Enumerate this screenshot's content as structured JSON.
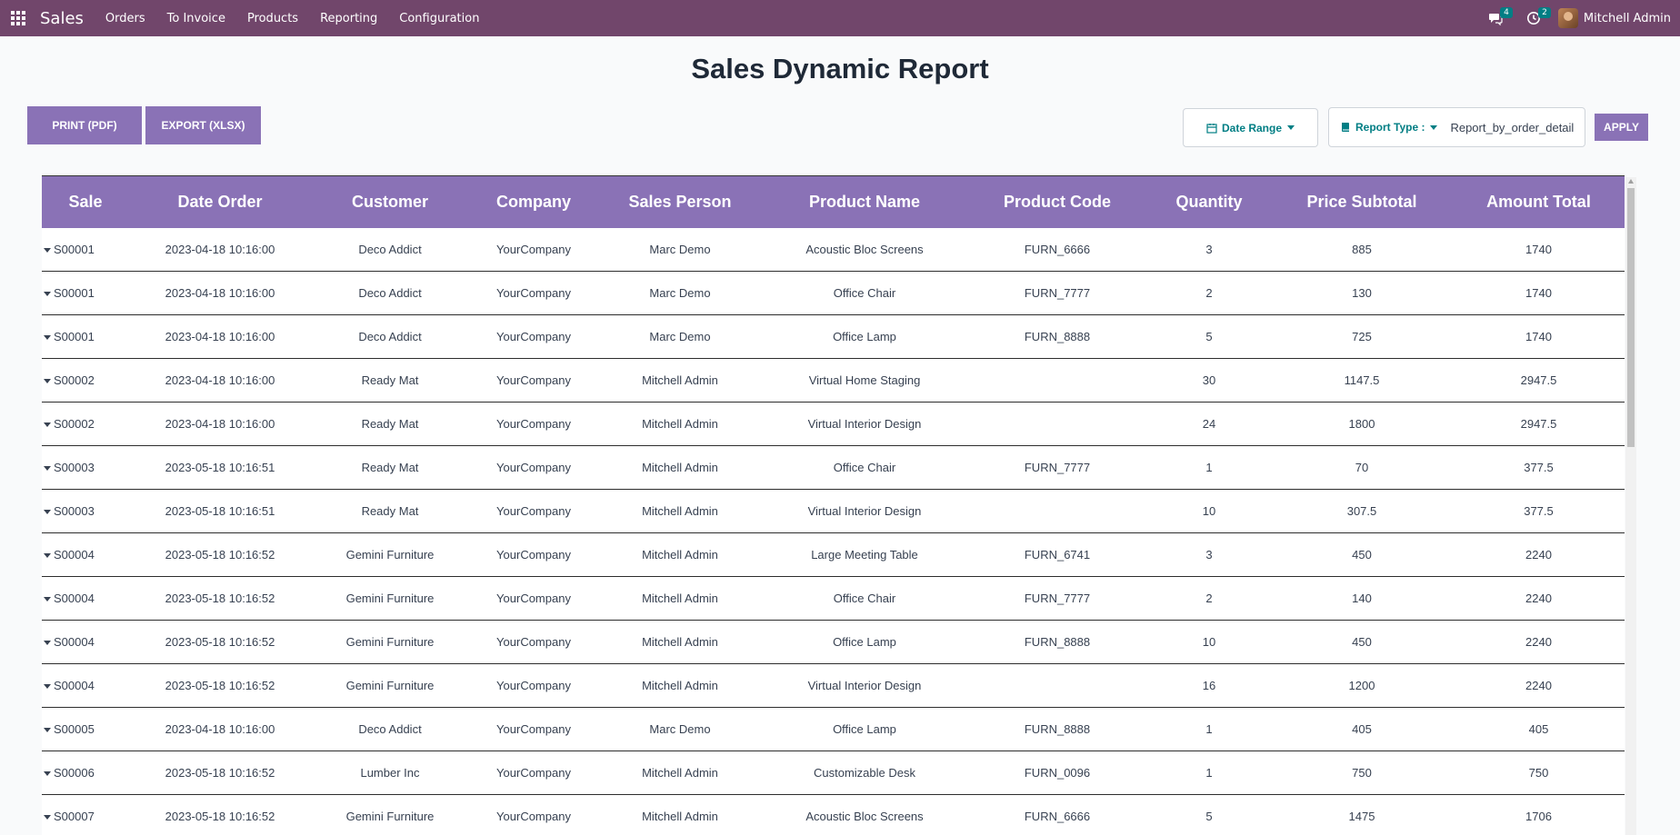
{
  "navbar": {
    "brand": "Sales",
    "items": [
      "Orders",
      "To Invoice",
      "Products",
      "Reporting",
      "Configuration"
    ],
    "messages_count": "4",
    "activities_count": "2",
    "user_name": "Mitchell Admin"
  },
  "title": "Sales Dynamic Report",
  "actions": {
    "print_label": "PRINT (PDF)",
    "export_label": "EXPORT (XLSX)",
    "apply_label": "APPLY"
  },
  "filters": {
    "date_range_label": "Date Range",
    "report_type_label": "Report Type :",
    "report_type_value": "Report_by_order_detail"
  },
  "colors": {
    "navbar": "#71466b",
    "accent": "#8a72b6",
    "teal": "#017e84"
  },
  "table": {
    "headers": [
      "Sale",
      "Date Order",
      "Customer",
      "Company",
      "Sales Person",
      "Product Name",
      "Product Code",
      "Quantity",
      "Price Subtotal",
      "Amount Total"
    ],
    "rows": [
      [
        "S00001",
        "2023-04-18 10:16:00",
        "Deco Addict",
        "YourCompany",
        "Marc Demo",
        "Acoustic Bloc Screens",
        "FURN_6666",
        "3",
        "885",
        "1740"
      ],
      [
        "S00001",
        "2023-04-18 10:16:00",
        "Deco Addict",
        "YourCompany",
        "Marc Demo",
        "Office Chair",
        "FURN_7777",
        "2",
        "130",
        "1740"
      ],
      [
        "S00001",
        "2023-04-18 10:16:00",
        "Deco Addict",
        "YourCompany",
        "Marc Demo",
        "Office Lamp",
        "FURN_8888",
        "5",
        "725",
        "1740"
      ],
      [
        "S00002",
        "2023-04-18 10:16:00",
        "Ready Mat",
        "YourCompany",
        "Mitchell Admin",
        "Virtual Home Staging",
        "",
        "30",
        "1147.5",
        "2947.5"
      ],
      [
        "S00002",
        "2023-04-18 10:16:00",
        "Ready Mat",
        "YourCompany",
        "Mitchell Admin",
        "Virtual Interior Design",
        "",
        "24",
        "1800",
        "2947.5"
      ],
      [
        "S00003",
        "2023-05-18 10:16:51",
        "Ready Mat",
        "YourCompany",
        "Mitchell Admin",
        "Office Chair",
        "FURN_7777",
        "1",
        "70",
        "377.5"
      ],
      [
        "S00003",
        "2023-05-18 10:16:51",
        "Ready Mat",
        "YourCompany",
        "Mitchell Admin",
        "Virtual Interior Design",
        "",
        "10",
        "307.5",
        "377.5"
      ],
      [
        "S00004",
        "2023-05-18 10:16:52",
        "Gemini Furniture",
        "YourCompany",
        "Mitchell Admin",
        "Large Meeting Table",
        "FURN_6741",
        "3",
        "450",
        "2240"
      ],
      [
        "S00004",
        "2023-05-18 10:16:52",
        "Gemini Furniture",
        "YourCompany",
        "Mitchell Admin",
        "Office Chair",
        "FURN_7777",
        "2",
        "140",
        "2240"
      ],
      [
        "S00004",
        "2023-05-18 10:16:52",
        "Gemini Furniture",
        "YourCompany",
        "Mitchell Admin",
        "Office Lamp",
        "FURN_8888",
        "10",
        "450",
        "2240"
      ],
      [
        "S00004",
        "2023-05-18 10:16:52",
        "Gemini Furniture",
        "YourCompany",
        "Mitchell Admin",
        "Virtual Interior Design",
        "",
        "16",
        "1200",
        "2240"
      ],
      [
        "S00005",
        "2023-04-18 10:16:00",
        "Deco Addict",
        "YourCompany",
        "Marc Demo",
        "Office Lamp",
        "FURN_8888",
        "1",
        "405",
        "405"
      ],
      [
        "S00006",
        "2023-05-18 10:16:52",
        "Lumber Inc",
        "YourCompany",
        "Mitchell Admin",
        "Customizable Desk",
        "FURN_0096",
        "1",
        "750",
        "750"
      ],
      [
        "S00007",
        "2023-05-18 10:16:52",
        "Gemini Furniture",
        "YourCompany",
        "Mitchell Admin",
        "Acoustic Bloc Screens",
        "FURN_6666",
        "5",
        "1475",
        "1706"
      ]
    ]
  }
}
